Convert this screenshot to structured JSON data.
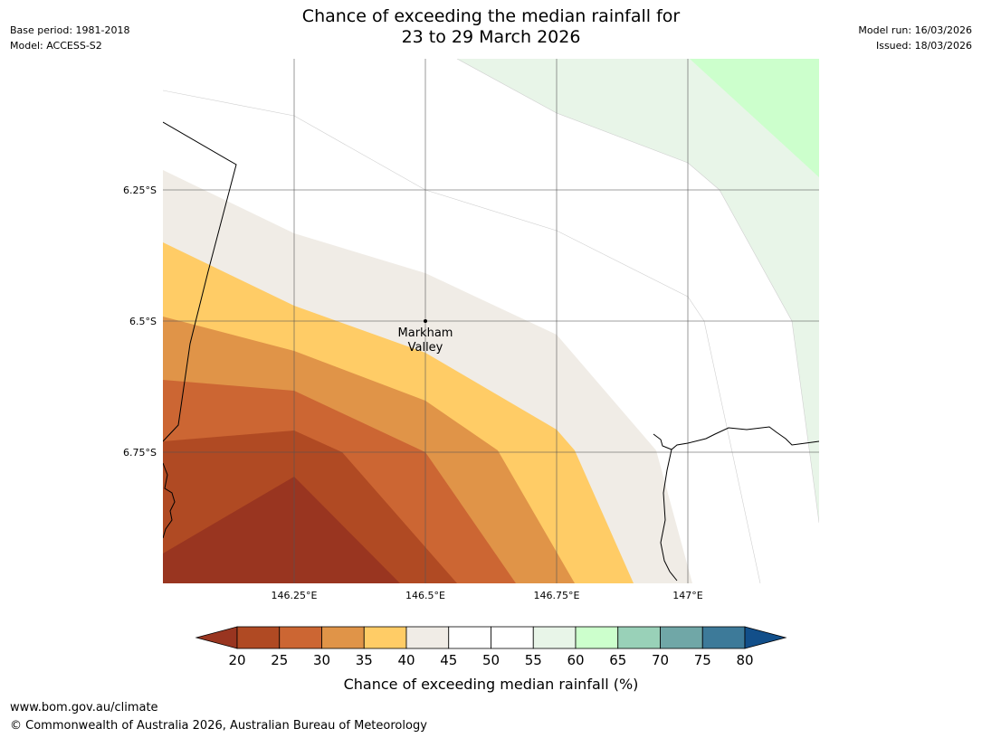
{
  "title": {
    "line1": "Chance of exceeding the median rainfall for",
    "line2": "23 to 29 March 2026"
  },
  "meta": {
    "base_period": "Base period: 1981-2018",
    "model": "Model: ACCESS-S2",
    "model_run": "Model run: 16/03/2026",
    "issued": "Issued: 18/03/2026"
  },
  "map": {
    "lon_range": [
      146.0,
      147.25
    ],
    "lat_range": [
      -7.0,
      -6.0
    ],
    "lat_ticks": [
      {
        "value": -6.25,
        "label": "6.25°S"
      },
      {
        "value": -6.5,
        "label": "6.5°S"
      },
      {
        "value": -6.75,
        "label": "6.75°S"
      }
    ],
    "lon_ticks": [
      {
        "value": 146.25,
        "label": "146.25°E"
      },
      {
        "value": 146.5,
        "label": "146.5°E"
      },
      {
        "value": 146.75,
        "label": "146.75°E"
      },
      {
        "value": 147.0,
        "label": "147°E"
      }
    ],
    "place": {
      "name_line1": "Markham",
      "name_line2": "Valley",
      "lon": 146.5,
      "lat": -6.5
    }
  },
  "colorbar": {
    "label": "Chance of exceeding median rainfall (%)",
    "ticks": [
      "20",
      "25",
      "30",
      "35",
      "40",
      "45",
      "50",
      "55",
      "60",
      "65",
      "70",
      "75",
      "80"
    ],
    "under_color": "#993520",
    "over_color": "#124f8a",
    "colors": [
      "#b04a23",
      "#cc6633",
      "#e09448",
      "#ffcc66",
      "#f0ece6",
      "#ffffff",
      "#ffffff",
      "#e8f5e8",
      "#ccffcc",
      "#99d1b8",
      "#70a7a7",
      "#3d7a99"
    ]
  },
  "chart_data": {
    "type": "contour_map",
    "variable": "Chance of exceeding median rainfall (%)",
    "levels": [
      20,
      25,
      30,
      35,
      40,
      45,
      50,
      55,
      60,
      65,
      70,
      75,
      80
    ],
    "regions_shown": [
      "<20",
      "20-25",
      "25-30",
      "30-35",
      "35-40",
      "40-45",
      "45-55",
      "55-60",
      "60-65"
    ]
  },
  "footer": {
    "url": "www.bom.gov.au/climate",
    "copyright": "© Commonwealth of Australia 2026, Australian Bureau of Meteorology"
  }
}
